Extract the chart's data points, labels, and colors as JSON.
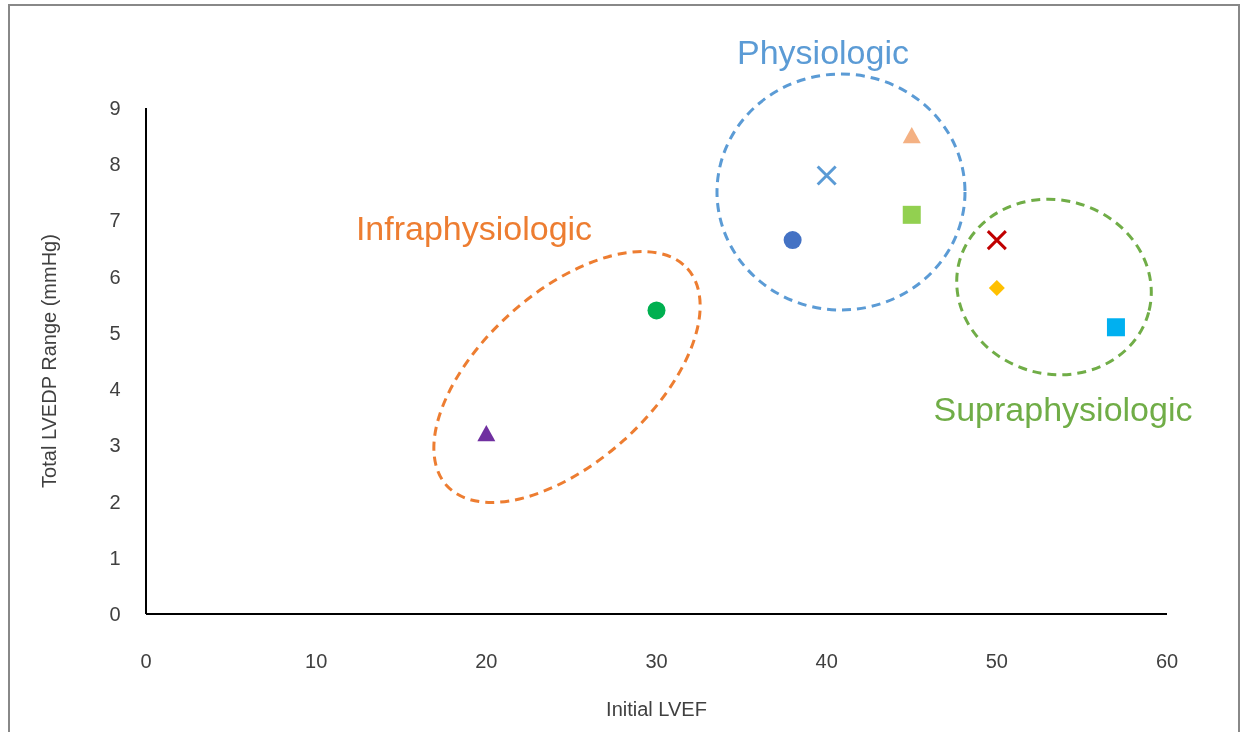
{
  "chart_data": {
    "type": "scatter",
    "xlabel": "Initial LVEF",
    "ylabel": "Total LVEDP Range (mmHg)",
    "xlim": [
      0,
      60
    ],
    "xticks": [
      0,
      10,
      20,
      30,
      40,
      50,
      60
    ],
    "ylim": [
      0,
      9
    ],
    "yticks": [
      0,
      1,
      2,
      3,
      4,
      5,
      6,
      7,
      8,
      9
    ],
    "annotations": [
      "Infraphysiologic",
      "Physiologic",
      "Supraphysiologic"
    ],
    "series": [
      {
        "color": "#7030a0",
        "marker": "triangle",
        "x": [
          20
        ],
        "values": [
          3.2
        ]
      },
      {
        "color": "#00b050",
        "marker": "circle",
        "x": [
          30
        ],
        "values": [
          5.4
        ]
      },
      {
        "color": "#4472c4",
        "marker": "circle",
        "x": [
          38
        ],
        "values": [
          6.65
        ]
      },
      {
        "color": "#5b9bd5",
        "marker": "cross",
        "x": [
          40
        ],
        "values": [
          7.8
        ]
      },
      {
        "color": "#f4b183",
        "marker": "triangle",
        "x": [
          45
        ],
        "values": [
          8.5
        ]
      },
      {
        "color": "#92d050",
        "marker": "square",
        "x": [
          45
        ],
        "values": [
          7.1
        ]
      },
      {
        "color": "#c00000",
        "marker": "cross",
        "x": [
          50
        ],
        "values": [
          6.65
        ]
      },
      {
        "color": "#ffc000",
        "marker": "diamond",
        "x": [
          50
        ],
        "values": [
          5.8
        ]
      },
      {
        "color": "#00b0f0",
        "marker": "square",
        "x": [
          57
        ],
        "values": [
          5.1
        ]
      }
    ]
  }
}
